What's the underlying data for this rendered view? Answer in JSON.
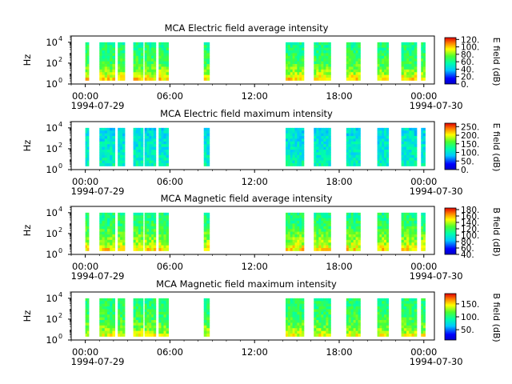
{
  "figure": {
    "panels": [
      {
        "title": "MCA  Electric field average intensity",
        "ylabel": "Hz",
        "yticks": [
          "10",
          "10",
          "10"
        ],
        "yexp": [
          "0",
          "2",
          "4"
        ],
        "xticks": [
          "00:00",
          "06:00",
          "12:00",
          "18:00",
          "00:00"
        ],
        "date_left": "1994-07-29",
        "date_right": "1994-07-30",
        "colorbar_label": "E field (dB)",
        "colorbar_ticks": [
          "0.",
          "20.",
          "40.",
          "60.",
          "80.",
          "100.",
          "120."
        ]
      },
      {
        "title": "MCA  Electric field maximum intensity",
        "ylabel": "Hz",
        "yticks": [
          "10",
          "10",
          "10"
        ],
        "yexp": [
          "0",
          "2",
          "4"
        ],
        "xticks": [
          "00:00",
          "06:00",
          "12:00",
          "18:00",
          "00:00"
        ],
        "date_left": "1994-07-29",
        "date_right": "1994-07-30",
        "colorbar_label": "E field (dB)",
        "colorbar_ticks": [
          "0.",
          "50.",
          "100.",
          "150.",
          "200.",
          "250."
        ]
      },
      {
        "title": "MCA  Magnetic field average intensity",
        "ylabel": "Hz",
        "yticks": [
          "10",
          "10",
          "10"
        ],
        "yexp": [
          "0",
          "2",
          "4"
        ],
        "xticks": [
          "00:00",
          "06:00",
          "12:00",
          "18:00",
          "00:00"
        ],
        "date_left": "1994-07-29",
        "date_right": "1994-07-30",
        "colorbar_label": "B field (dB)",
        "colorbar_ticks": [
          "40.",
          "60.",
          "80.",
          "100.",
          "120.",
          "140.",
          "160.",
          "180."
        ]
      },
      {
        "title": "MCA  Magnetic field maximum intensity",
        "ylabel": "Hz",
        "yticks": [
          "10",
          "10",
          "10"
        ],
        "yexp": [
          "0",
          "2",
          "4"
        ],
        "xticks": [
          "00:00",
          "06:00",
          "12:00",
          "18:00",
          "00:00"
        ],
        "date_left": "1994-07-29",
        "date_right": "1994-07-30",
        "colorbar_label": "B field (dB)",
        "colorbar_ticks": [
          "50.",
          "100.",
          "150."
        ]
      }
    ]
  },
  "chart_data": [
    {
      "type": "heatmap",
      "title": "MCA  Electric field average intensity",
      "xlabel": "",
      "ylabel": "Hz",
      "x_range": [
        "1994-07-28T23:00",
        "1994-07-30T00:45"
      ],
      "y_scale": "log",
      "y_range": [
        1,
        40000
      ],
      "colorbar": {
        "label": "E field (dB)",
        "range": [
          0,
          125
        ]
      },
      "data_intervals_hours": [
        [
          0.0,
          0.25
        ],
        [
          1.0,
          2.1
        ],
        [
          2.3,
          2.8
        ],
        [
          3.4,
          4.1
        ],
        [
          4.2,
          5.0
        ],
        [
          5.2,
          5.9
        ],
        [
          8.4,
          8.8
        ],
        [
          14.2,
          15.5
        ],
        [
          16.2,
          17.4
        ],
        [
          18.5,
          19.5
        ],
        [
          20.7,
          21.5
        ],
        [
          22.4,
          23.5
        ],
        [
          23.8,
          24.1
        ]
      ],
      "frequency_profile_db": {
        "log10_hz": [
          0,
          1,
          2,
          3,
          4
        ],
        "db": [
          110,
          85,
          70,
          65,
          60
        ]
      }
    },
    {
      "type": "heatmap",
      "title": "MCA  Electric field maximum intensity",
      "xlabel": "",
      "ylabel": "Hz",
      "x_range": [
        "1994-07-28T23:00",
        "1994-07-30T00:45"
      ],
      "y_scale": "log",
      "y_range": [
        1,
        40000
      ],
      "colorbar": {
        "label": "E field (dB)",
        "range": [
          0,
          270
        ]
      },
      "data_intervals_hours": [
        [
          0.0,
          0.25
        ],
        [
          1.0,
          2.1
        ],
        [
          2.3,
          2.8
        ],
        [
          3.4,
          4.1
        ],
        [
          4.2,
          5.0
        ],
        [
          5.2,
          5.9
        ],
        [
          8.4,
          8.8
        ],
        [
          14.2,
          15.5
        ],
        [
          16.2,
          17.4
        ],
        [
          18.5,
          19.5
        ],
        [
          20.7,
          21.5
        ],
        [
          22.4,
          23.5
        ],
        [
          23.8,
          24.1
        ]
      ],
      "frequency_profile_db": {
        "log10_hz": [
          0,
          1,
          2,
          3,
          4
        ],
        "db": [
          120,
          110,
          105,
          100,
          95
        ]
      }
    },
    {
      "type": "heatmap",
      "title": "MCA  Magnetic field average intensity",
      "xlabel": "",
      "ylabel": "Hz",
      "x_range": [
        "1994-07-28T23:00",
        "1994-07-30T00:45"
      ],
      "y_scale": "log",
      "y_range": [
        1,
        40000
      ],
      "colorbar": {
        "label": "B field (dB)",
        "range": [
          40,
          185
        ]
      },
      "data_intervals_hours": [
        [
          0.0,
          0.25
        ],
        [
          1.0,
          2.1
        ],
        [
          2.3,
          2.8
        ],
        [
          3.4,
          4.1
        ],
        [
          4.2,
          5.0
        ],
        [
          5.2,
          5.9
        ],
        [
          8.4,
          8.8
        ],
        [
          14.2,
          15.5
        ],
        [
          16.2,
          17.4
        ],
        [
          18.5,
          19.5
        ],
        [
          20.7,
          21.5
        ],
        [
          22.4,
          23.5
        ],
        [
          23.8,
          24.1
        ]
      ],
      "frequency_profile_db": {
        "log10_hz": [
          0,
          1,
          2,
          3,
          4
        ],
        "db": [
          165,
          140,
          125,
          115,
          110
        ]
      }
    },
    {
      "type": "heatmap",
      "title": "MCA  Magnetic field maximum intensity",
      "xlabel": "",
      "ylabel": "Hz",
      "x_range": [
        "1994-07-28T23:00",
        "1994-07-30T00:45"
      ],
      "y_scale": "log",
      "y_range": [
        1,
        40000
      ],
      "colorbar": {
        "label": "B field (dB)",
        "range": [
          10,
          190
        ]
      },
      "data_intervals_hours": [
        [
          0.0,
          0.25
        ],
        [
          1.0,
          2.1
        ],
        [
          2.3,
          2.8
        ],
        [
          3.4,
          4.1
        ],
        [
          4.2,
          5.0
        ],
        [
          5.2,
          5.9
        ],
        [
          8.4,
          8.8
        ],
        [
          14.2,
          15.5
        ],
        [
          16.2,
          17.4
        ],
        [
          18.5,
          19.5
        ],
        [
          20.7,
          21.5
        ],
        [
          22.4,
          23.5
        ],
        [
          23.8,
          24.1
        ]
      ],
      "frequency_profile_db": {
        "log10_hz": [
          0,
          1,
          2,
          3,
          4
        ],
        "db": [
          155,
          125,
          110,
          105,
          100
        ]
      }
    }
  ]
}
